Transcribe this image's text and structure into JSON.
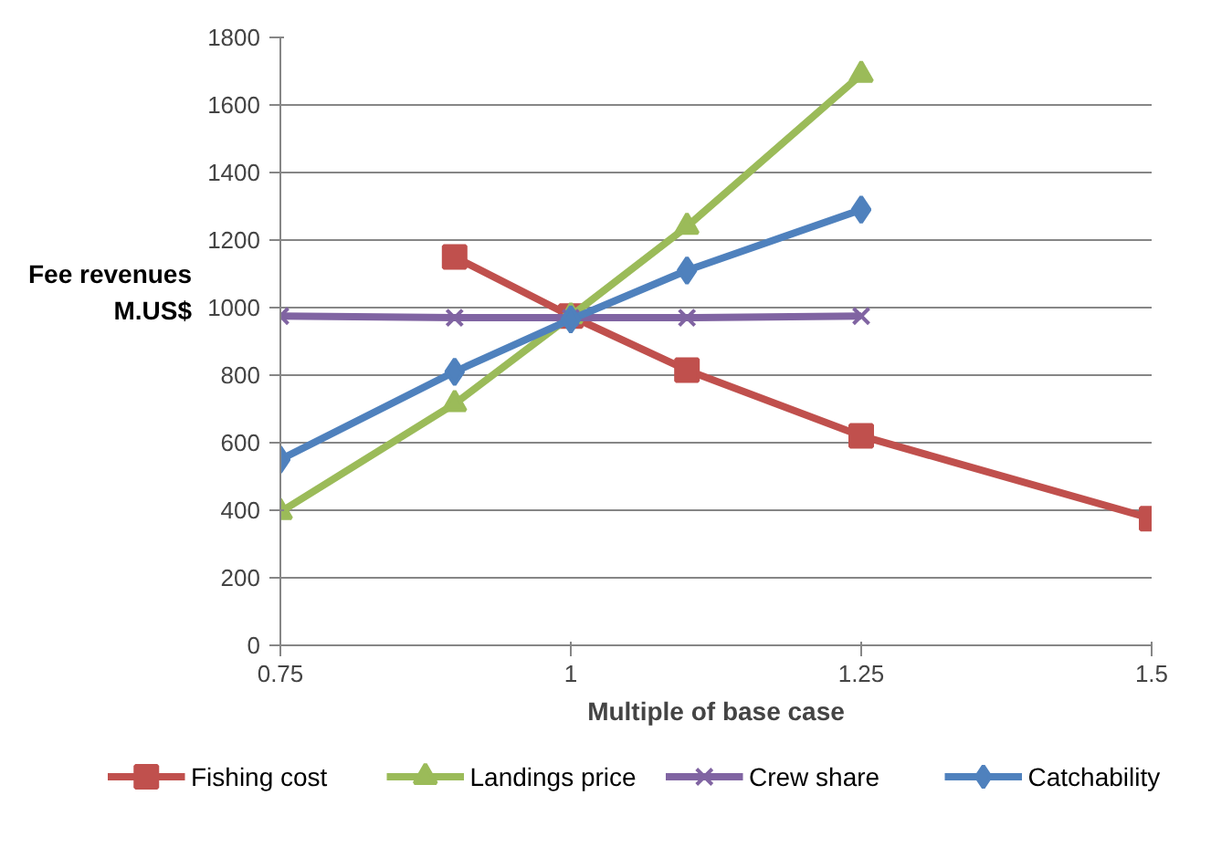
{
  "chart_data": {
    "type": "line",
    "xlabel": "Multiple of base case",
    "ylabel": "Fee revenues\nM.US$",
    "xlim": [
      0.75,
      1.5
    ],
    "xticks": [
      0.75,
      1,
      1.25,
      1.5
    ],
    "ylim": [
      0,
      1800
    ],
    "yticks": [
      0,
      200,
      400,
      600,
      800,
      1000,
      1200,
      1400,
      1600,
      1800
    ],
    "grid": "y",
    "legend": "bottom",
    "series": [
      {
        "name": "Fishing cost",
        "color": "#c0504d",
        "marker": "square",
        "x": [
          0.9,
          1,
          1.1,
          1.25,
          1.5
        ],
        "values": [
          1150,
          975,
          815,
          620,
          375
        ]
      },
      {
        "name": "Landings price",
        "color": "#9bbb59",
        "marker": "triangle",
        "x": [
          0.75,
          0.9,
          1,
          1.1,
          1.25
        ],
        "values": [
          395,
          715,
          975,
          1240,
          1690
        ]
      },
      {
        "name": "Crew share",
        "color": "#8064a2",
        "marker": "cross",
        "x": [
          0.75,
          0.9,
          1,
          1.1,
          1.25
        ],
        "values": [
          975,
          970,
          970,
          970,
          975
        ]
      },
      {
        "name": "Catchability",
        "color": "#4f81bd",
        "marker": "diamond",
        "x": [
          0.75,
          0.9,
          1,
          1.1,
          1.25
        ],
        "values": [
          550,
          810,
          965,
          1110,
          1290
        ]
      }
    ]
  }
}
